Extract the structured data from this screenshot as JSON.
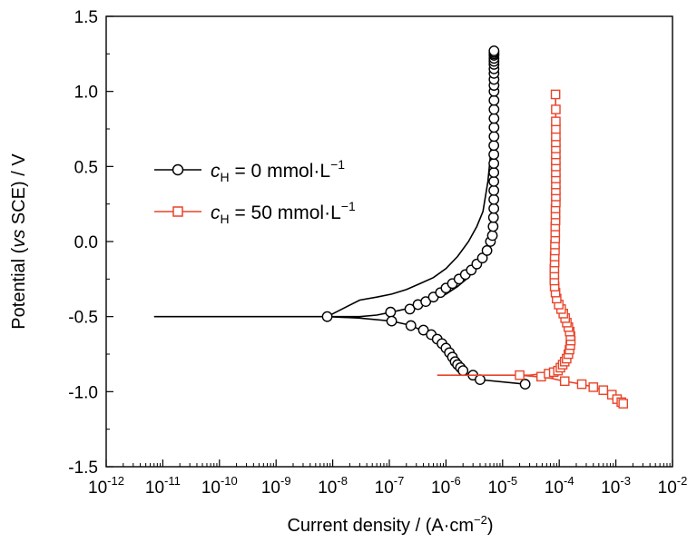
{
  "chart_data": {
    "type": "line",
    "xscale": "log",
    "xlim": [
      1e-12,
      0.01
    ],
    "ylim": [
      -1.5,
      1.5
    ],
    "grid": false,
    "legend_position": "left",
    "xlabel": {
      "pre": "Current density / (A·cm",
      "sup": "−2",
      "post": ")"
    },
    "ylabel": {
      "pre": "Potential (",
      "italic": "vs",
      "post": " SCE) / V"
    },
    "x_ticks": [
      {
        "value": 1e-12,
        "base": "10",
        "exp": "-12"
      },
      {
        "value": 1e-11,
        "base": "10",
        "exp": "-11"
      },
      {
        "value": 1e-10,
        "base": "10",
        "exp": "-10"
      },
      {
        "value": 1e-09,
        "base": "10",
        "exp": "-9"
      },
      {
        "value": 1e-08,
        "base": "10",
        "exp": "-8"
      },
      {
        "value": 1e-07,
        "base": "10",
        "exp": "-7"
      },
      {
        "value": 1e-06,
        "base": "10",
        "exp": "-6"
      },
      {
        "value": 1e-05,
        "base": "10",
        "exp": "-5"
      },
      {
        "value": 0.0001,
        "base": "10",
        "exp": "-4"
      },
      {
        "value": 0.001,
        "base": "10",
        "exp": "-3"
      },
      {
        "value": 0.01,
        "base": "10",
        "exp": "-2"
      }
    ],
    "y_ticks": [
      {
        "value": 1.5,
        "label": "1.5"
      },
      {
        "value": 1.0,
        "label": "1.0"
      },
      {
        "value": 0.5,
        "label": "0.5"
      },
      {
        "value": 0.0,
        "label": "0.0"
      },
      {
        "value": -0.5,
        "label": "-0.5"
      },
      {
        "value": -1.0,
        "label": "-1.0"
      },
      {
        "value": -1.5,
        "label": "-1.5"
      }
    ],
    "series": [
      {
        "id": "s0",
        "legend": {
          "symbol": "c",
          "sub": "H",
          "text": " = 0 mmol·L",
          "sup": "−1"
        },
        "color": "#000000",
        "marker": "circle",
        "x": [
          7e-12,
          1e-09,
          8e-09,
          3e-08,
          6e-08,
          1.1e-07,
          2.5e-07,
          5e-07,
          1e-06,
          1.6e-06,
          2.3e-06,
          2.9e-06,
          3.5e-06,
          4.2e-06,
          5e-06,
          5.7e-06,
          6.2e-06,
          6.6e-06,
          6.9e-06,
          7e-06,
          7.1e-06,
          7.1e-06,
          7.1e-06,
          7e-06,
          6.7e-06,
          6.2e-06,
          5.5e-06,
          4.5e-06,
          3.5e-06,
          2.5e-06,
          1.6e-06,
          1e-06,
          6e-07,
          3.5e-07,
          2e-07,
          1.1e-07,
          6e-08,
          3e-08,
          8e-09
        ],
        "y": [
          -0.5,
          -0.5,
          -0.5,
          -0.5,
          -0.49,
          -0.47,
          -0.44,
          -0.4,
          -0.35,
          -0.3,
          -0.25,
          -0.2,
          -0.15,
          -0.1,
          -0.05,
          0.0,
          0.1,
          0.3,
          0.5,
          0.8,
          1.1,
          1.26,
          1.26,
          1.1,
          0.8,
          0.6,
          0.4,
          0.2,
          0.1,
          0.0,
          -0.1,
          -0.18,
          -0.24,
          -0.28,
          -0.32,
          -0.35,
          -0.37,
          -0.39,
          -0.5
        ],
        "x2": [
          8e-09,
          3e-08,
          1.1e-07,
          2.5e-07,
          4e-07,
          6e-07,
          8e-07,
          1e-06,
          1.2e-06,
          1.4e-06,
          1.6e-06,
          2e-06,
          2.5e-06,
          4e-06,
          2.5e-05
        ],
        "y2": [
          -0.5,
          -0.51,
          -0.53,
          -0.56,
          -0.6,
          -0.65,
          -0.69,
          -0.73,
          -0.77,
          -0.81,
          -0.84,
          -0.87,
          -0.89,
          -0.92,
          -0.95
        ],
        "marker_points": {
          "x": [
            8e-09,
            1.05e-07,
            1.1e-07,
            2.3e-07,
            3.2e-07,
            4.4e-07,
            6e-07,
            8e-07,
            1e-06,
            1.3e-06,
            1.7e-06,
            2.2e-06,
            2.8e-06,
            3.5e-06,
            4.4e-06,
            5.3e-06,
            6.1e-06,
            6.6e-06,
            6.8e-06,
            6.9e-06,
            7e-06,
            7e-06,
            7e-06,
            7e-06,
            7e-06,
            7e-06,
            7e-06,
            7e-06,
            7.05e-06,
            7.05e-06,
            7.05e-06,
            7.05e-06,
            7.05e-06,
            7.05e-06,
            7.05e-06,
            7.05e-06,
            7.05e-06,
            7.05e-06,
            7.05e-06,
            7.05e-06,
            7.05e-06,
            7.05e-06,
            7.05e-06,
            7.05e-06,
            7.05e-06,
            2.4e-07,
            4e-07,
            5.5e-07,
            7e-07,
            8.5e-07,
            1e-06,
            1.15e-06,
            1.3e-06,
            1.45e-06,
            1.6e-06,
            1.8e-06,
            2e-06,
            3e-06,
            4e-06,
            2.5e-05
          ],
          "y": [
            -0.5,
            -0.47,
            -0.53,
            -0.45,
            -0.42,
            -0.4,
            -0.37,
            -0.34,
            -0.31,
            -0.28,
            -0.25,
            -0.22,
            -0.19,
            -0.15,
            -0.11,
            -0.06,
            0.0,
            0.04,
            0.1,
            0.16,
            0.22,
            0.28,
            0.34,
            0.4,
            0.46,
            0.52,
            0.58,
            0.64,
            0.7,
            0.76,
            0.82,
            0.88,
            0.94,
            1.0,
            1.04,
            1.08,
            1.12,
            1.15,
            1.18,
            1.2,
            1.22,
            1.24,
            1.25,
            1.26,
            1.27,
            -0.56,
            -0.59,
            -0.62,
            -0.65,
            -0.68,
            -0.71,
            -0.74,
            -0.77,
            -0.8,
            -0.82,
            -0.84,
            -0.86,
            -0.89,
            -0.92,
            -0.95
          ]
        }
      },
      {
        "id": "s1",
        "legend": {
          "symbol": "c",
          "sub": "H",
          "text": " = 50 mmol·L",
          "sup": "−1"
        },
        "color": "#e8442a",
        "marker": "square",
        "x": [
          7e-07,
          1e-05,
          3e-05,
          5e-05,
          6.5e-05,
          8e-05,
          0.0001,
          0.000115,
          0.00013,
          0.000145,
          0.000155,
          0.00016,
          0.000155,
          0.000145,
          0.00013,
          0.000115,
          0.0001,
          9e-05,
          8.5e-05,
          8.2e-05,
          8.2e-05,
          8.3e-05,
          8.5e-05,
          8.6e-05,
          8.7e-05,
          8.7e-05,
          8.6e-05
        ],
        "y": [
          -0.89,
          -0.89,
          -0.89,
          -0.88,
          -0.87,
          -0.86,
          -0.84,
          -0.82,
          -0.79,
          -0.75,
          -0.7,
          -0.65,
          -0.6,
          -0.55,
          -0.5,
          -0.45,
          -0.4,
          -0.35,
          -0.3,
          -0.2,
          -0.1,
          0.0,
          0.2,
          0.4,
          0.6,
          0.8,
          1.0
        ],
        "x2": [
          2e-05,
          4e-05,
          7e-05,
          0.00012,
          0.00025,
          0.0004,
          0.0006,
          0.00085,
          0.0011,
          0.00135
        ],
        "y2": [
          -0.89,
          -0.9,
          -0.91,
          -0.93,
          -0.95,
          -0.97,
          -0.99,
          -1.02,
          -1.05,
          -1.08
        ],
        "marker_points": {
          "x": [
            2e-05,
            4.8e-05,
            6.5e-05,
            8e-05,
            9.5e-05,
            0.000105,
            0.000115,
            0.000125,
            0.000135,
            0.000145,
            0.000152,
            0.000157,
            0.00016,
            0.000158,
            0.000153,
            0.000145,
            0.000136,
            0.000127,
            0.000118,
            0.000108,
            9.8e-05,
            9e-05,
            8.6e-05,
            8.3e-05,
            8.2e-05,
            8.2e-05,
            8.2e-05,
            8.3e-05,
            8.3e-05,
            8.4e-05,
            8.4e-05,
            8.5e-05,
            8.5e-05,
            8.5e-05,
            8.6e-05,
            8.6e-05,
            8.6e-05,
            8.7e-05,
            8.7e-05,
            8.7e-05,
            8.7e-05,
            8.7e-05,
            8.7e-05,
            8.7e-05,
            8.7e-05,
            8.7e-05,
            8.7e-05,
            8.7e-05,
            8.7e-05,
            8.7e-05,
            8.7e-05,
            8.7e-05,
            8.6e-05,
            0.000125,
            0.00025,
            0.0004,
            0.0006,
            0.00085,
            0.00105,
            0.00125,
            0.00135
          ],
          "y": [
            -0.89,
            -0.9,
            -0.88,
            -0.87,
            -0.86,
            -0.84,
            -0.82,
            -0.8,
            -0.78,
            -0.75,
            -0.72,
            -0.69,
            -0.66,
            -0.63,
            -0.6,
            -0.57,
            -0.54,
            -0.51,
            -0.48,
            -0.45,
            -0.42,
            -0.38,
            -0.34,
            -0.3,
            -0.26,
            -0.22,
            -0.18,
            -0.14,
            -0.1,
            -0.06,
            -0.02,
            0.02,
            0.06,
            0.1,
            0.14,
            0.18,
            0.22,
            0.26,
            0.3,
            0.34,
            0.38,
            0.42,
            0.46,
            0.5,
            0.54,
            0.58,
            0.62,
            0.66,
            0.7,
            0.75,
            0.8,
            0.88,
            0.98,
            -0.93,
            -0.95,
            -0.97,
            -0.99,
            -1.02,
            -1.05,
            -1.07,
            -1.08
          ]
        }
      }
    ]
  }
}
